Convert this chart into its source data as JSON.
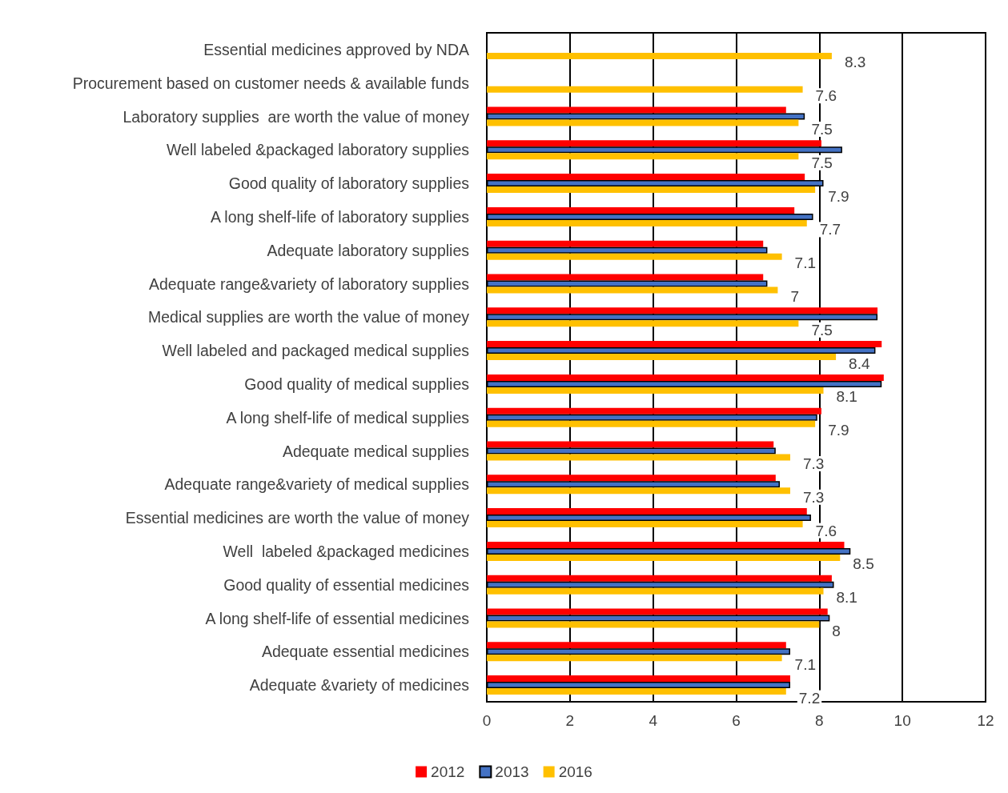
{
  "chart_data": {
    "type": "bar",
    "orientation": "horizontal",
    "categories": [
      "Essential medicines approved by NDA",
      "Procurement based on customer needs & available funds",
      "Laboratory supplies  are worth the value of money",
      "Well labeled &packaged laboratory supplies",
      "Good quality of laboratory supplies",
      "A long shelf-life of laboratory supplies",
      "Adequate laboratory supplies",
      "Adequate range&variety of laboratory supplies",
      "Medical supplies are worth the value of money",
      "Well labeled and packaged medical supplies",
      "Good quality of medical supplies",
      "A long shelf-life of medical supplies",
      "Adequate medical supplies",
      "Adequate range&variety of medical supplies",
      "Essential medicines are worth the value of money",
      "Well  labeled &packaged medicines",
      "Good quality of essential medicines",
      "A long shelf-life of essential medicines",
      "Adequate essential medicines",
      "Adequate &variety of medicines"
    ],
    "series": [
      {
        "name": "2012",
        "color": "#ff0000",
        "values": [
          null,
          null,
          7.2,
          8.05,
          7.65,
          7.4,
          6.65,
          6.65,
          9.4,
          9.5,
          9.55,
          8.05,
          6.9,
          6.95,
          7.7,
          8.6,
          8.3,
          8.2,
          7.2,
          7.3
        ]
      },
      {
        "name": "2013",
        "color": "#4472c4",
        "values": [
          null,
          null,
          7.65,
          8.55,
          8.1,
          7.85,
          6.75,
          6.75,
          9.4,
          9.35,
          9.5,
          7.95,
          6.95,
          7.05,
          7.8,
          8.75,
          8.35,
          8.25,
          7.3,
          7.3
        ]
      },
      {
        "name": "2016",
        "color": "#ffc000",
        "values": [
          8.3,
          7.6,
          7.5,
          7.5,
          7.9,
          7.7,
          7.1,
          7.0,
          7.5,
          8.4,
          8.1,
          7.9,
          7.3,
          7.3,
          7.6,
          8.5,
          8.1,
          8.0,
          7.1,
          7.2
        ],
        "value_labels": [
          "8.3",
          "7.6",
          "7.5",
          "7.5",
          "7.9",
          "7.7",
          "7.1",
          "7",
          "7.5",
          "8.4",
          "8.1",
          "7.9",
          "7.3",
          "7.3",
          "7.6",
          "8.5",
          "8.1",
          "8",
          "7.1",
          "7.2"
        ]
      }
    ],
    "xlim": [
      0,
      12
    ],
    "xticks": [
      0,
      2,
      4,
      6,
      8,
      10,
      12
    ],
    "grid": "x",
    "legend": "bottom"
  }
}
